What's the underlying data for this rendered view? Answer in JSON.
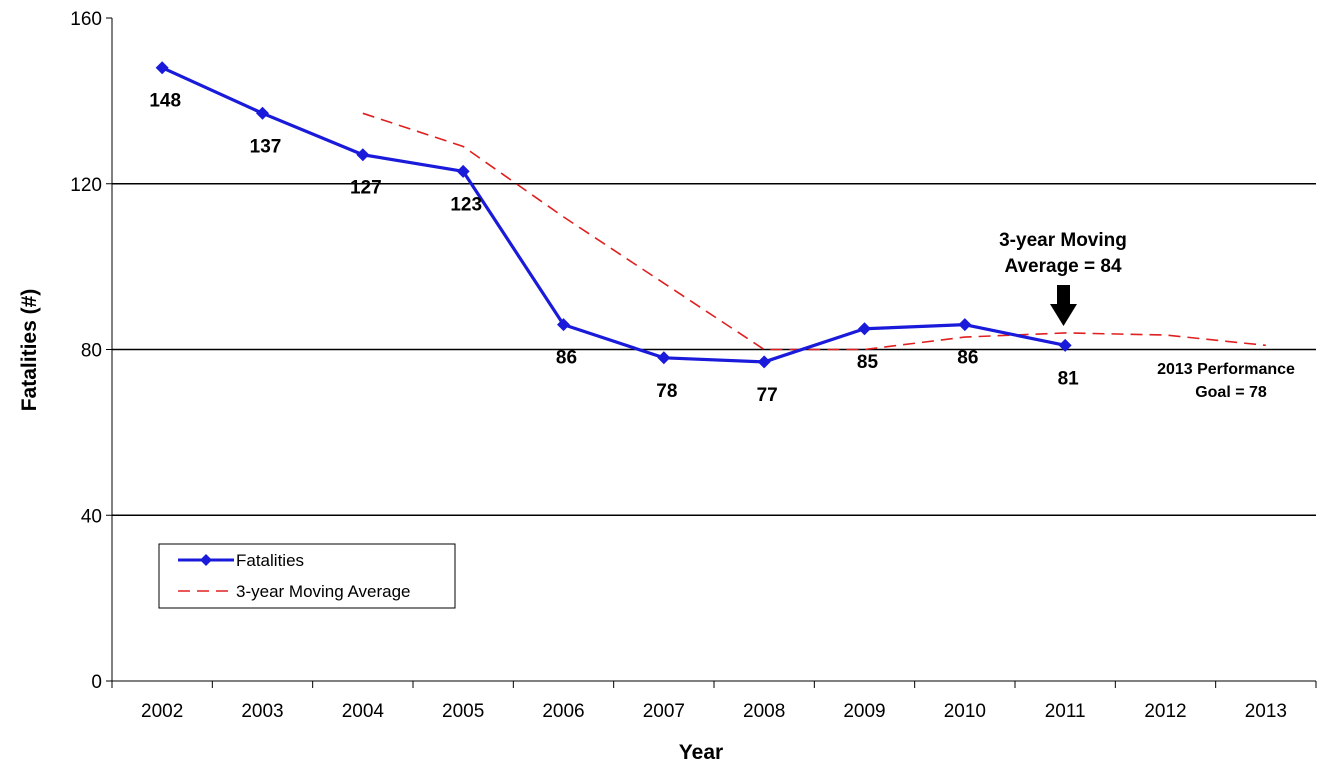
{
  "chart_data": {
    "type": "line",
    "categories": [
      "2002",
      "2003",
      "2004",
      "2005",
      "2006",
      "2007",
      "2008",
      "2009",
      "2010",
      "2011",
      "2012",
      "2013"
    ],
    "xlabel": "Year",
    "ylabel": "Fatalities (#)",
    "ylim": [
      0,
      160
    ],
    "yticks": [
      "0",
      "40",
      "80",
      "120",
      "160"
    ],
    "grid": "horizontal lines at 40, 80, 120",
    "legend_position": "bottom-left",
    "series": [
      {
        "name": "Fatalities",
        "color": "#1a1adb",
        "style": "solid line with diamond markers",
        "values": [
          148,
          137,
          127,
          123,
          86,
          78,
          77,
          85,
          86,
          81,
          null,
          null
        ],
        "labels": [
          "148",
          "137",
          "127",
          "123",
          "86",
          "78",
          "77",
          "85",
          "86",
          "81",
          "",
          ""
        ]
      },
      {
        "name": "3-year Moving Average",
        "color": "#e02020",
        "style": "dashed line",
        "values": [
          null,
          null,
          137,
          129,
          112,
          96,
          80,
          80,
          83,
          84,
          83.5,
          81
        ]
      }
    ],
    "annotations": {
      "moving_avg_line1": "3-year Moving",
      "moving_avg_line2": "Average = 84",
      "goal_line1": "2013 Performance",
      "goal_line2": "Goal = 78"
    }
  }
}
